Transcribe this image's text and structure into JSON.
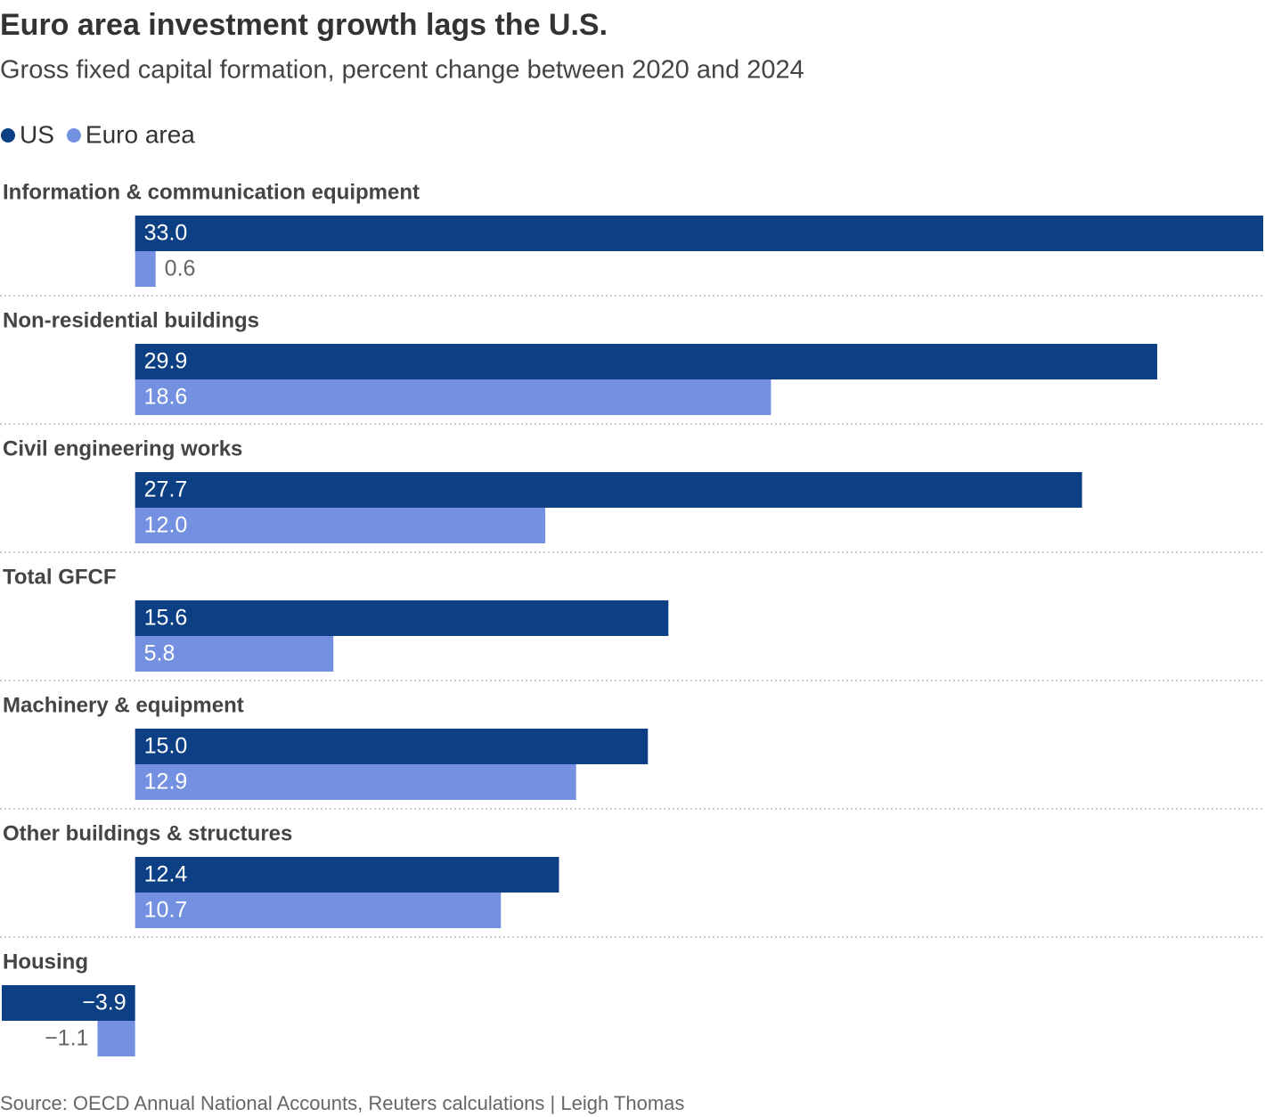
{
  "chart_data": {
    "type": "bar",
    "title": "Euro area investment growth lags the U.S.",
    "subtitle": "Gross fixed capital formation, percent change between 2020 and 2024",
    "categories": [
      "Information & communication equipment",
      "Non-residential buildings",
      "Civil engineering works",
      "Total GFCF",
      "Machinery & equipment",
      "Other buildings & structures",
      "Housing"
    ],
    "series": [
      {
        "name": "US",
        "color": "#0c3f84",
        "values": [
          33.0,
          29.9,
          27.7,
          15.6,
          15.0,
          12.4,
          -3.9
        ],
        "value_labels": [
          "33.0",
          "29.9",
          "27.7",
          "15.6",
          "15.0",
          "12.4",
          "−3.9"
        ]
      },
      {
        "name": "Euro area",
        "color": "#7391e0",
        "values": [
          0.6,
          18.6,
          12.0,
          5.8,
          12.9,
          10.7,
          -1.1
        ],
        "value_labels": [
          "0.6",
          "18.6",
          "12.0",
          "5.8",
          "12.9",
          "10.7",
          "−1.1"
        ]
      }
    ],
    "xlim": [
      -3.9,
      33.0
    ],
    "source": "Source: OECD Annual National Accounts, Reuters calculations | Leigh Thomas"
  }
}
